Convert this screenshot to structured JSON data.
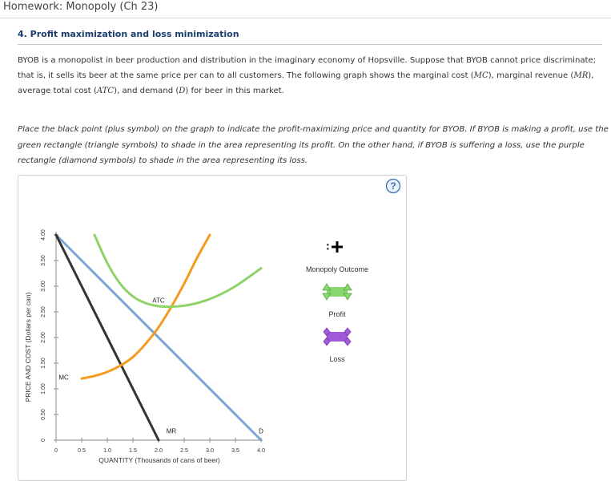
{
  "header": {
    "title": "Homework: Monopoly (Ch 23)"
  },
  "question": {
    "title": "4. Profit maximization and loss minimization",
    "intro_part1": "BYOB is a monopolist in beer production and distribution in the imaginary economy of Hopsville. Suppose that BYOB cannot price discriminate; that is, it sells its beer at the same price per can to all customers. The following graph shows the marginal cost (",
    "mc_abbr": "MC",
    "intro_part2": "), marginal revenue (",
    "mr_abbr": "MR",
    "intro_part3": "), average total cost (",
    "atc_abbr": "ATC",
    "intro_part4": "), and demand (",
    "d_abbr": "D",
    "intro_part5": ") for beer in this market.",
    "instructions": "Place the black point (plus symbol) on the graph to indicate the profit-maximizing price and quantity for BYOB. If BYOB is making a profit, use the green rectangle (triangle symbols) to shade in the area representing its profit. On the other hand, if BYOB is suffering a loss, use the purple rectangle (diamond symbols) to shade in the area representing its loss."
  },
  "help_label": "?",
  "chart_data": {
    "type": "line",
    "xlabel": "QUANTITY (Thousands of cans of beer)",
    "ylabel": "PRICE AND COST (Dollars per can)",
    "xlim": [
      0,
      4.0
    ],
    "ylim": [
      0,
      4.0
    ],
    "x_ticks": [
      0,
      0.5,
      1.0,
      1.5,
      2.0,
      2.5,
      3.0,
      3.5,
      4.0
    ],
    "x_tick_labels": [
      "0",
      "0.5",
      "1.0",
      "1.5",
      "2.0",
      "2.5",
      "3.0",
      "3.5",
      "4.0"
    ],
    "y_ticks": [
      0,
      0.5,
      1.0,
      1.5,
      2.0,
      2.5,
      3.0,
      3.5,
      4.0
    ],
    "y_tick_labels": [
      "0",
      "0.50",
      "1.00",
      "1.50",
      "2.00",
      "2.50",
      "3.00",
      "3.50",
      "4.00"
    ],
    "series": [
      {
        "name": "D",
        "color": "#7aa6d6",
        "x": [
          0,
          4.0
        ],
        "y": [
          4.0,
          0
        ]
      },
      {
        "name": "MR",
        "color": "#333333",
        "x": [
          0,
          2.0
        ],
        "y": [
          4.0,
          0
        ]
      },
      {
        "name": "MC",
        "color": "#f59b1f",
        "x": [
          0.5,
          0.75,
          1.0,
          1.25,
          1.5,
          1.75,
          2.0,
          2.25,
          2.5,
          2.75,
          3.0
        ],
        "y": [
          1.2,
          1.25,
          1.33,
          1.45,
          1.62,
          1.88,
          2.2,
          2.6,
          3.05,
          3.55,
          4.0
        ]
      },
      {
        "name": "ATC",
        "color": "#8fd26a",
        "x": [
          0.75,
          1.0,
          1.25,
          1.5,
          1.75,
          2.0,
          2.25,
          2.5,
          2.75,
          3.0,
          3.25,
          3.5,
          3.75,
          4.0
        ],
        "y": [
          4.0,
          3.45,
          3.05,
          2.8,
          2.67,
          2.61,
          2.6,
          2.62,
          2.67,
          2.75,
          2.86,
          3.0,
          3.17,
          3.35
        ]
      }
    ],
    "curve_labels": [
      {
        "text": "D",
        "x": 4.0,
        "y": 0.1
      },
      {
        "text": "MR",
        "x": 2.25,
        "y": 0.1
      },
      {
        "text": "MC",
        "x": 0.15,
        "y": 1.15
      },
      {
        "text": "ATC",
        "x": 2.0,
        "y": 2.65
      }
    ],
    "grid": false,
    "legend": "right"
  },
  "palette": {
    "items": [
      {
        "label": "Monopoly Outcome",
        "symbol": "plus",
        "color": "#000000"
      },
      {
        "label": "Profit",
        "symbol": "triangle",
        "color": "#8ad66f"
      },
      {
        "label": "Loss",
        "symbol": "diamond",
        "color": "#a05ad8"
      }
    ]
  }
}
